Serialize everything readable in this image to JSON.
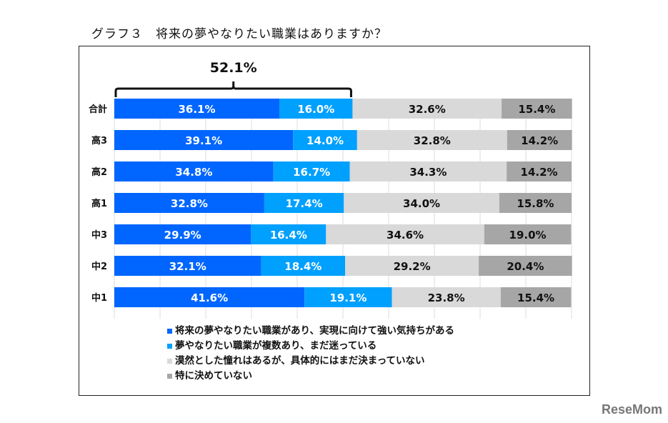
{
  "chart_data": {
    "type": "bar",
    "orientation": "horizontal-stacked-100",
    "title": "グラフ３　将来の夢やなりたい職業はありますか？",
    "categories": [
      "合計",
      "高3",
      "高2",
      "高1",
      "中3",
      "中2",
      "中1"
    ],
    "series": [
      {
        "name": "将来の夢やなりたい職業があり、実現に向けて強い気持ちがある",
        "color": "#0066ff",
        "values": [
          36.1,
          39.1,
          34.8,
          32.8,
          29.9,
          32.1,
          41.6
        ]
      },
      {
        "name": "夢やなりたい職業が複数あり、まだ迷っている",
        "color": "#00a0ff",
        "values": [
          16.0,
          14.0,
          16.7,
          17.4,
          16.4,
          18.4,
          19.1
        ]
      },
      {
        "name": "漠然とした憧れはあるが、具体的にはまだ決まっていない",
        "color": "#d9d9d9",
        "values": [
          32.6,
          32.8,
          34.3,
          34.0,
          34.6,
          29.2,
          23.8
        ]
      },
      {
        "name": "特に決めていない",
        "color": "#a6a6a6",
        "values": [
          15.4,
          14.2,
          14.2,
          15.8,
          19.0,
          20.4,
          15.4
        ]
      }
    ],
    "xlim": [
      0,
      100
    ],
    "grid": true,
    "legend_position": "bottom",
    "annotation": {
      "label": "52.1%",
      "category": "合計",
      "spans_series": [
        0,
        1
      ]
    }
  },
  "watermark": "ReseMom"
}
